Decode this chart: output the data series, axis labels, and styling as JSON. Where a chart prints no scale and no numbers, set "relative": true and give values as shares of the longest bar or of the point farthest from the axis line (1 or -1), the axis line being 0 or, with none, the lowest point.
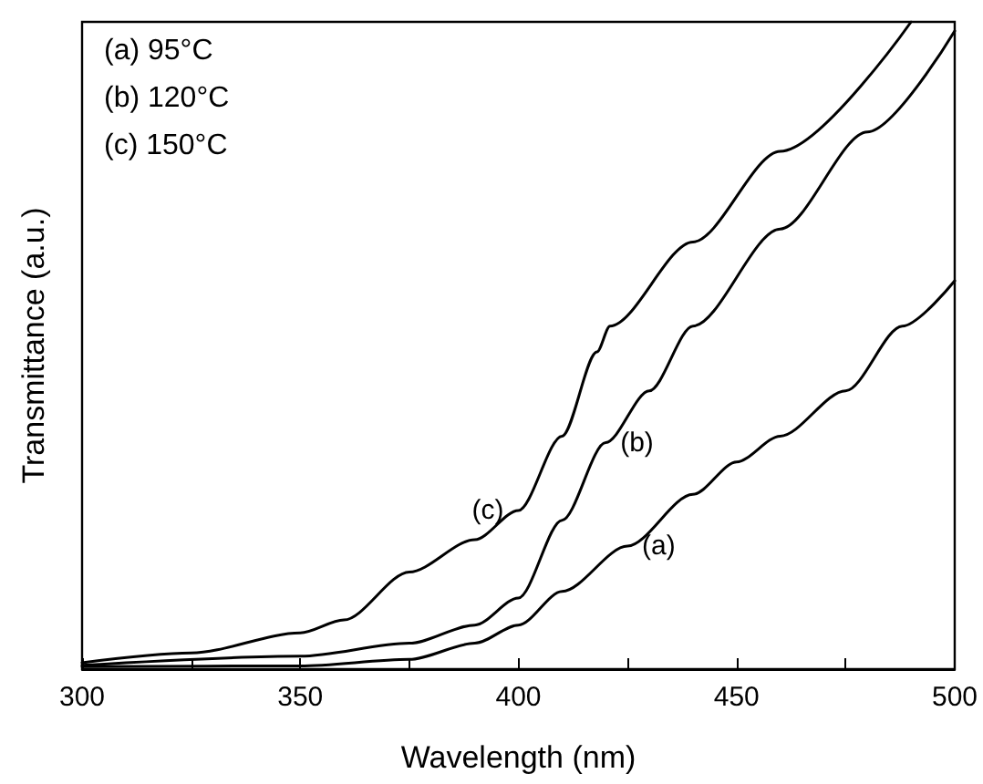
{
  "chart_data": {
    "type": "line",
    "relative": true,
    "xlabel": "Wavelength (nm)",
    "ylabel": "Transmittance (a.u.)",
    "annotations": [
      "(a) 95°C",
      "(b) 120°C",
      "(c) 150°C"
    ],
    "xlim": [
      300,
      500
    ],
    "xticks": [
      300,
      {
        "value": 325,
        "label": null
      },
      350,
      {
        "value": 375,
        "label": null
      },
      400,
      {
        "value": 425,
        "label": null
      },
      450,
      {
        "value": 475,
        "label": null
      },
      500
    ],
    "grid": false,
    "legend": false,
    "marker": "none",
    "line_style": "solid",
    "series": [
      {
        "name": "(a)",
        "color": "#000000",
        "x": [
          300,
          350,
          375,
          390,
          400,
          410,
          425,
          440,
          450,
          460,
          475,
          488,
          500
        ],
        "values": [
          0.004,
          0.005,
          0.015,
          0.04,
          0.068,
          0.12,
          0.19,
          0.27,
          0.32,
          0.36,
          0.43,
          0.53,
          0.6
        ]
      },
      {
        "name": "(b)",
        "color": "#000000",
        "x": [
          300,
          350,
          375,
          390,
          400,
          410,
          420,
          430,
          440,
          460,
          480,
          500
        ],
        "values": [
          0.006,
          0.02,
          0.04,
          0.068,
          0.11,
          0.23,
          0.35,
          0.43,
          0.53,
          0.68,
          0.83,
          0.986
        ]
      },
      {
        "name": "(c)",
        "color": "#000000",
        "x": [
          300,
          325,
          350,
          360,
          375,
          390,
          400,
          410,
          418,
          421,
          440,
          460,
          490
        ],
        "values": [
          0.01,
          0.025,
          0.056,
          0.076,
          0.15,
          0.2,
          0.245,
          0.36,
          0.49,
          0.53,
          0.66,
          0.8,
          1.0
        ]
      }
    ]
  }
}
